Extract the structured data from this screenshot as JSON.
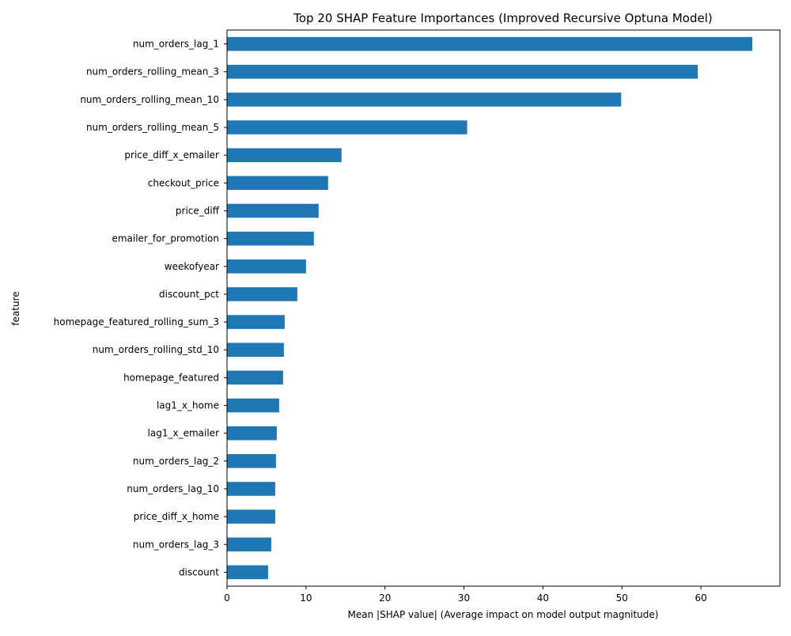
{
  "chart_data": {
    "type": "bar",
    "orientation": "horizontal",
    "title": "Top 20 SHAP Feature Importances (Improved Recursive Optuna Model)",
    "xlabel": "Mean |SHAP value| (Average impact on model output magnitude)",
    "ylabel": "feature",
    "xlim": [
      0,
      70
    ],
    "xticks": [
      0,
      10,
      20,
      30,
      40,
      50,
      60
    ],
    "grid": false,
    "legend": "none",
    "bar_color": "#1f77b4",
    "categories": [
      "num_orders_lag_1",
      "num_orders_rolling_mean_3",
      "num_orders_rolling_mean_10",
      "num_orders_rolling_mean_5",
      "price_diff_x_emailer",
      "checkout_price",
      "price_diff",
      "emailer_for_promotion",
      "weekofyear",
      "discount_pct",
      "homepage_featured_rolling_sum_3",
      "num_orders_rolling_std_10",
      "homepage_featured",
      "lag1_x_home",
      "lag1_x_emailer",
      "num_orders_lag_2",
      "num_orders_lag_10",
      "price_diff_x_home",
      "num_orders_lag_3",
      "discount"
    ],
    "values": [
      66.5,
      59.6,
      49.9,
      30.4,
      14.5,
      12.8,
      11.6,
      11.0,
      10.0,
      8.9,
      7.3,
      7.2,
      7.1,
      6.6,
      6.3,
      6.2,
      6.1,
      6.1,
      5.6,
      5.2
    ]
  }
}
